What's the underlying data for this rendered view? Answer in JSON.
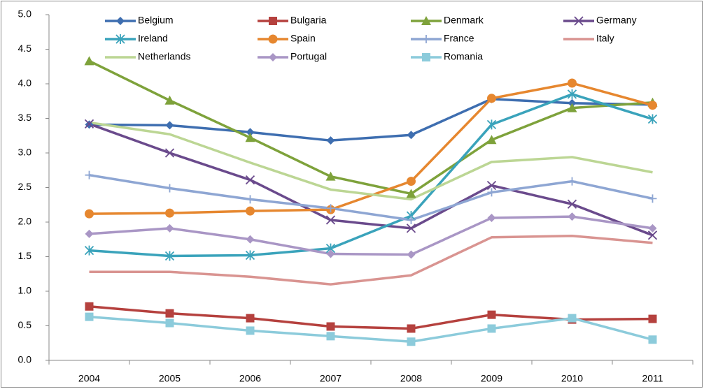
{
  "chart_data": {
    "type": "line",
    "categories": [
      "2004",
      "2005",
      "2006",
      "2007",
      "2008",
      "2009",
      "2010",
      "2011"
    ],
    "ylim": [
      0,
      5
    ],
    "yticks": [
      {
        "value": 0,
        "label": "0.0"
      },
      {
        "value": 0.5,
        "label": "0.5"
      },
      {
        "value": 1,
        "label": "1.0"
      },
      {
        "value": 1.5,
        "label": "1.5"
      },
      {
        "value": 2,
        "label": "2.0"
      },
      {
        "value": 2.5,
        "label": "2.5"
      },
      {
        "value": 3,
        "label": "3.0"
      },
      {
        "value": 3.5,
        "label": "3.5"
      },
      {
        "value": 4,
        "label": "4.0"
      },
      {
        "value": 4.5,
        "label": "4.5"
      },
      {
        "value": 5,
        "label": "5.0"
      }
    ],
    "grid": false,
    "legend": "top",
    "series": [
      {
        "name": "Belgium",
        "color": "#3e6eb0",
        "marker": "diamond",
        "values": [
          3.41,
          3.4,
          3.3,
          3.18,
          3.26,
          3.78,
          3.72,
          3.7
        ]
      },
      {
        "name": "Bulgaria",
        "color": "#b5413e",
        "marker": "square",
        "values": [
          0.78,
          0.68,
          0.61,
          0.49,
          0.46,
          0.66,
          0.59,
          0.6
        ]
      },
      {
        "name": "Denmark",
        "color": "#7ea23b",
        "marker": "triangle",
        "values": [
          4.33,
          3.76,
          3.22,
          2.66,
          2.41,
          3.19,
          3.65,
          3.73
        ]
      },
      {
        "name": "Germany",
        "color": "#6a4a8c",
        "marker": "x",
        "values": [
          3.42,
          3.0,
          2.61,
          2.03,
          1.91,
          2.53,
          2.26,
          1.81
        ]
      },
      {
        "name": "Ireland",
        "color": "#3aa3bb",
        "marker": "asterisk",
        "values": [
          1.59,
          1.51,
          1.52,
          1.62,
          2.09,
          3.41,
          3.85,
          3.49
        ]
      },
      {
        "name": "Spain",
        "color": "#e6872f",
        "marker": "circle",
        "values": [
          2.12,
          2.13,
          2.16,
          2.18,
          2.59,
          3.79,
          4.01,
          3.69
        ]
      },
      {
        "name": "France",
        "color": "#8ea6d3",
        "marker": "plus",
        "values": [
          2.68,
          2.49,
          2.33,
          2.2,
          2.03,
          2.43,
          2.59,
          2.34
        ]
      },
      {
        "name": "Italy",
        "color": "#d99491",
        "marker": "none",
        "values": [
          1.28,
          1.28,
          1.21,
          1.1,
          1.23,
          1.78,
          1.8,
          1.7
        ]
      },
      {
        "name": "Netherlands",
        "color": "#bcd694",
        "marker": "none",
        "values": [
          3.44,
          3.27,
          2.86,
          2.47,
          2.33,
          2.87,
          2.94,
          2.72
        ]
      },
      {
        "name": "Portugal",
        "color": "#a996c5",
        "marker": "diamond",
        "values": [
          1.83,
          1.91,
          1.75,
          1.54,
          1.53,
          2.06,
          2.08,
          1.91
        ]
      },
      {
        "name": "Romania",
        "color": "#8ccbdb",
        "marker": "square",
        "values": [
          0.63,
          0.54,
          0.43,
          0.35,
          0.27,
          0.46,
          0.61,
          0.3
        ]
      }
    ]
  }
}
